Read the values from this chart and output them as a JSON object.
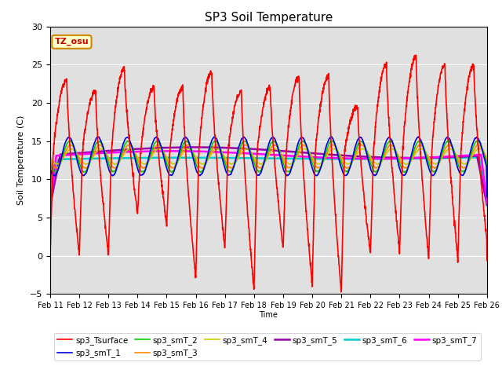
{
  "title": "SP3 Soil Temperature",
  "ylabel": "Soil Temperature (C)",
  "xlabel": "Time",
  "ylim": [
    -5,
    30
  ],
  "yticks": [
    -5,
    0,
    5,
    10,
    15,
    20,
    25,
    30
  ],
  "annotation": "TZ_osu",
  "annotation_color": "#cc0000",
  "annotation_bg": "#ffffcc",
  "annotation_border": "#cc8800",
  "bg_color": "#e0e0e0",
  "series_colors": {
    "sp3_Tsurface": "#ff0000",
    "sp3_smT_1": "#0000dd",
    "sp3_smT_2": "#00cc00",
    "sp3_smT_3": "#ff8800",
    "sp3_smT_4": "#cccc00",
    "sp3_smT_5": "#9900aa",
    "sp3_smT_6": "#00cccc",
    "sp3_smT_7": "#ff00ff"
  },
  "series_linewidths": {
    "sp3_Tsurface": 1.2,
    "sp3_smT_1": 1.2,
    "sp3_smT_2": 1.2,
    "sp3_smT_3": 1.2,
    "sp3_smT_4": 1.2,
    "sp3_smT_5": 1.8,
    "sp3_smT_6": 1.8,
    "sp3_smT_7": 1.8
  },
  "legend_order": [
    "sp3_Tsurface",
    "sp3_smT_1",
    "sp3_smT_2",
    "sp3_smT_3",
    "sp3_smT_4",
    "sp3_smT_5",
    "sp3_smT_6",
    "sp3_smT_7"
  ]
}
